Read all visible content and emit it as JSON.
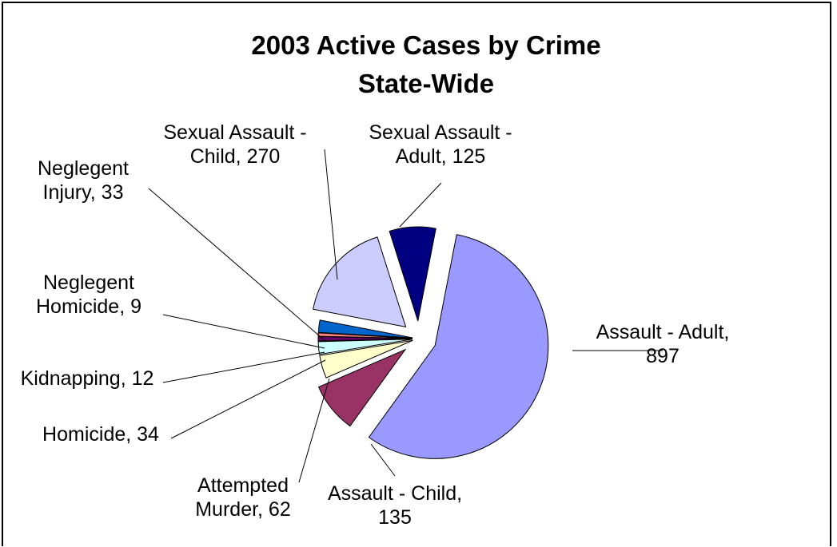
{
  "chart_data": {
    "type": "pie",
    "title_line1": "2003 Active Cases by Crime",
    "title_line2": "State-Wide",
    "slices": [
      {
        "name": "Assault - Adult",
        "value": 897,
        "color": "#9999FF",
        "label": [
          "Assault - Adult,",
          "897"
        ]
      },
      {
        "name": "Assault - Child",
        "value": 135,
        "color": "#993366",
        "label": [
          "Assault - Child,",
          "135"
        ]
      },
      {
        "name": "Attempted Murder",
        "value": 62,
        "color": "#FFFFCC",
        "label": [
          "Attempted",
          "Murder, 62"
        ]
      },
      {
        "name": "Homicide",
        "value": 34,
        "color": "#CCFFFF",
        "label": [
          "Homicide, 34"
        ]
      },
      {
        "name": "Kidnapping",
        "value": 12,
        "color": "#660066",
        "label": [
          "Kidnapping, 12"
        ]
      },
      {
        "name": "Neglegent Homicide",
        "value": 9,
        "color": "#FF8080",
        "label": [
          "Neglegent",
          "Homicide, 9"
        ]
      },
      {
        "name": "Neglegent Injury",
        "value": 33,
        "color": "#0066CC",
        "label": [
          "Neglegent",
          "Injury, 33"
        ]
      },
      {
        "name": "Sexual Assault - Child",
        "value": 270,
        "color": "#CCCCFF",
        "label": [
          "Sexual Assault -",
          "Child, 270"
        ]
      },
      {
        "name": "Sexual Assault - Adult",
        "value": 125,
        "color": "#000080",
        "label": [
          "Sexual Assault -",
          "Adult, 125"
        ]
      }
    ],
    "legend": "none"
  }
}
